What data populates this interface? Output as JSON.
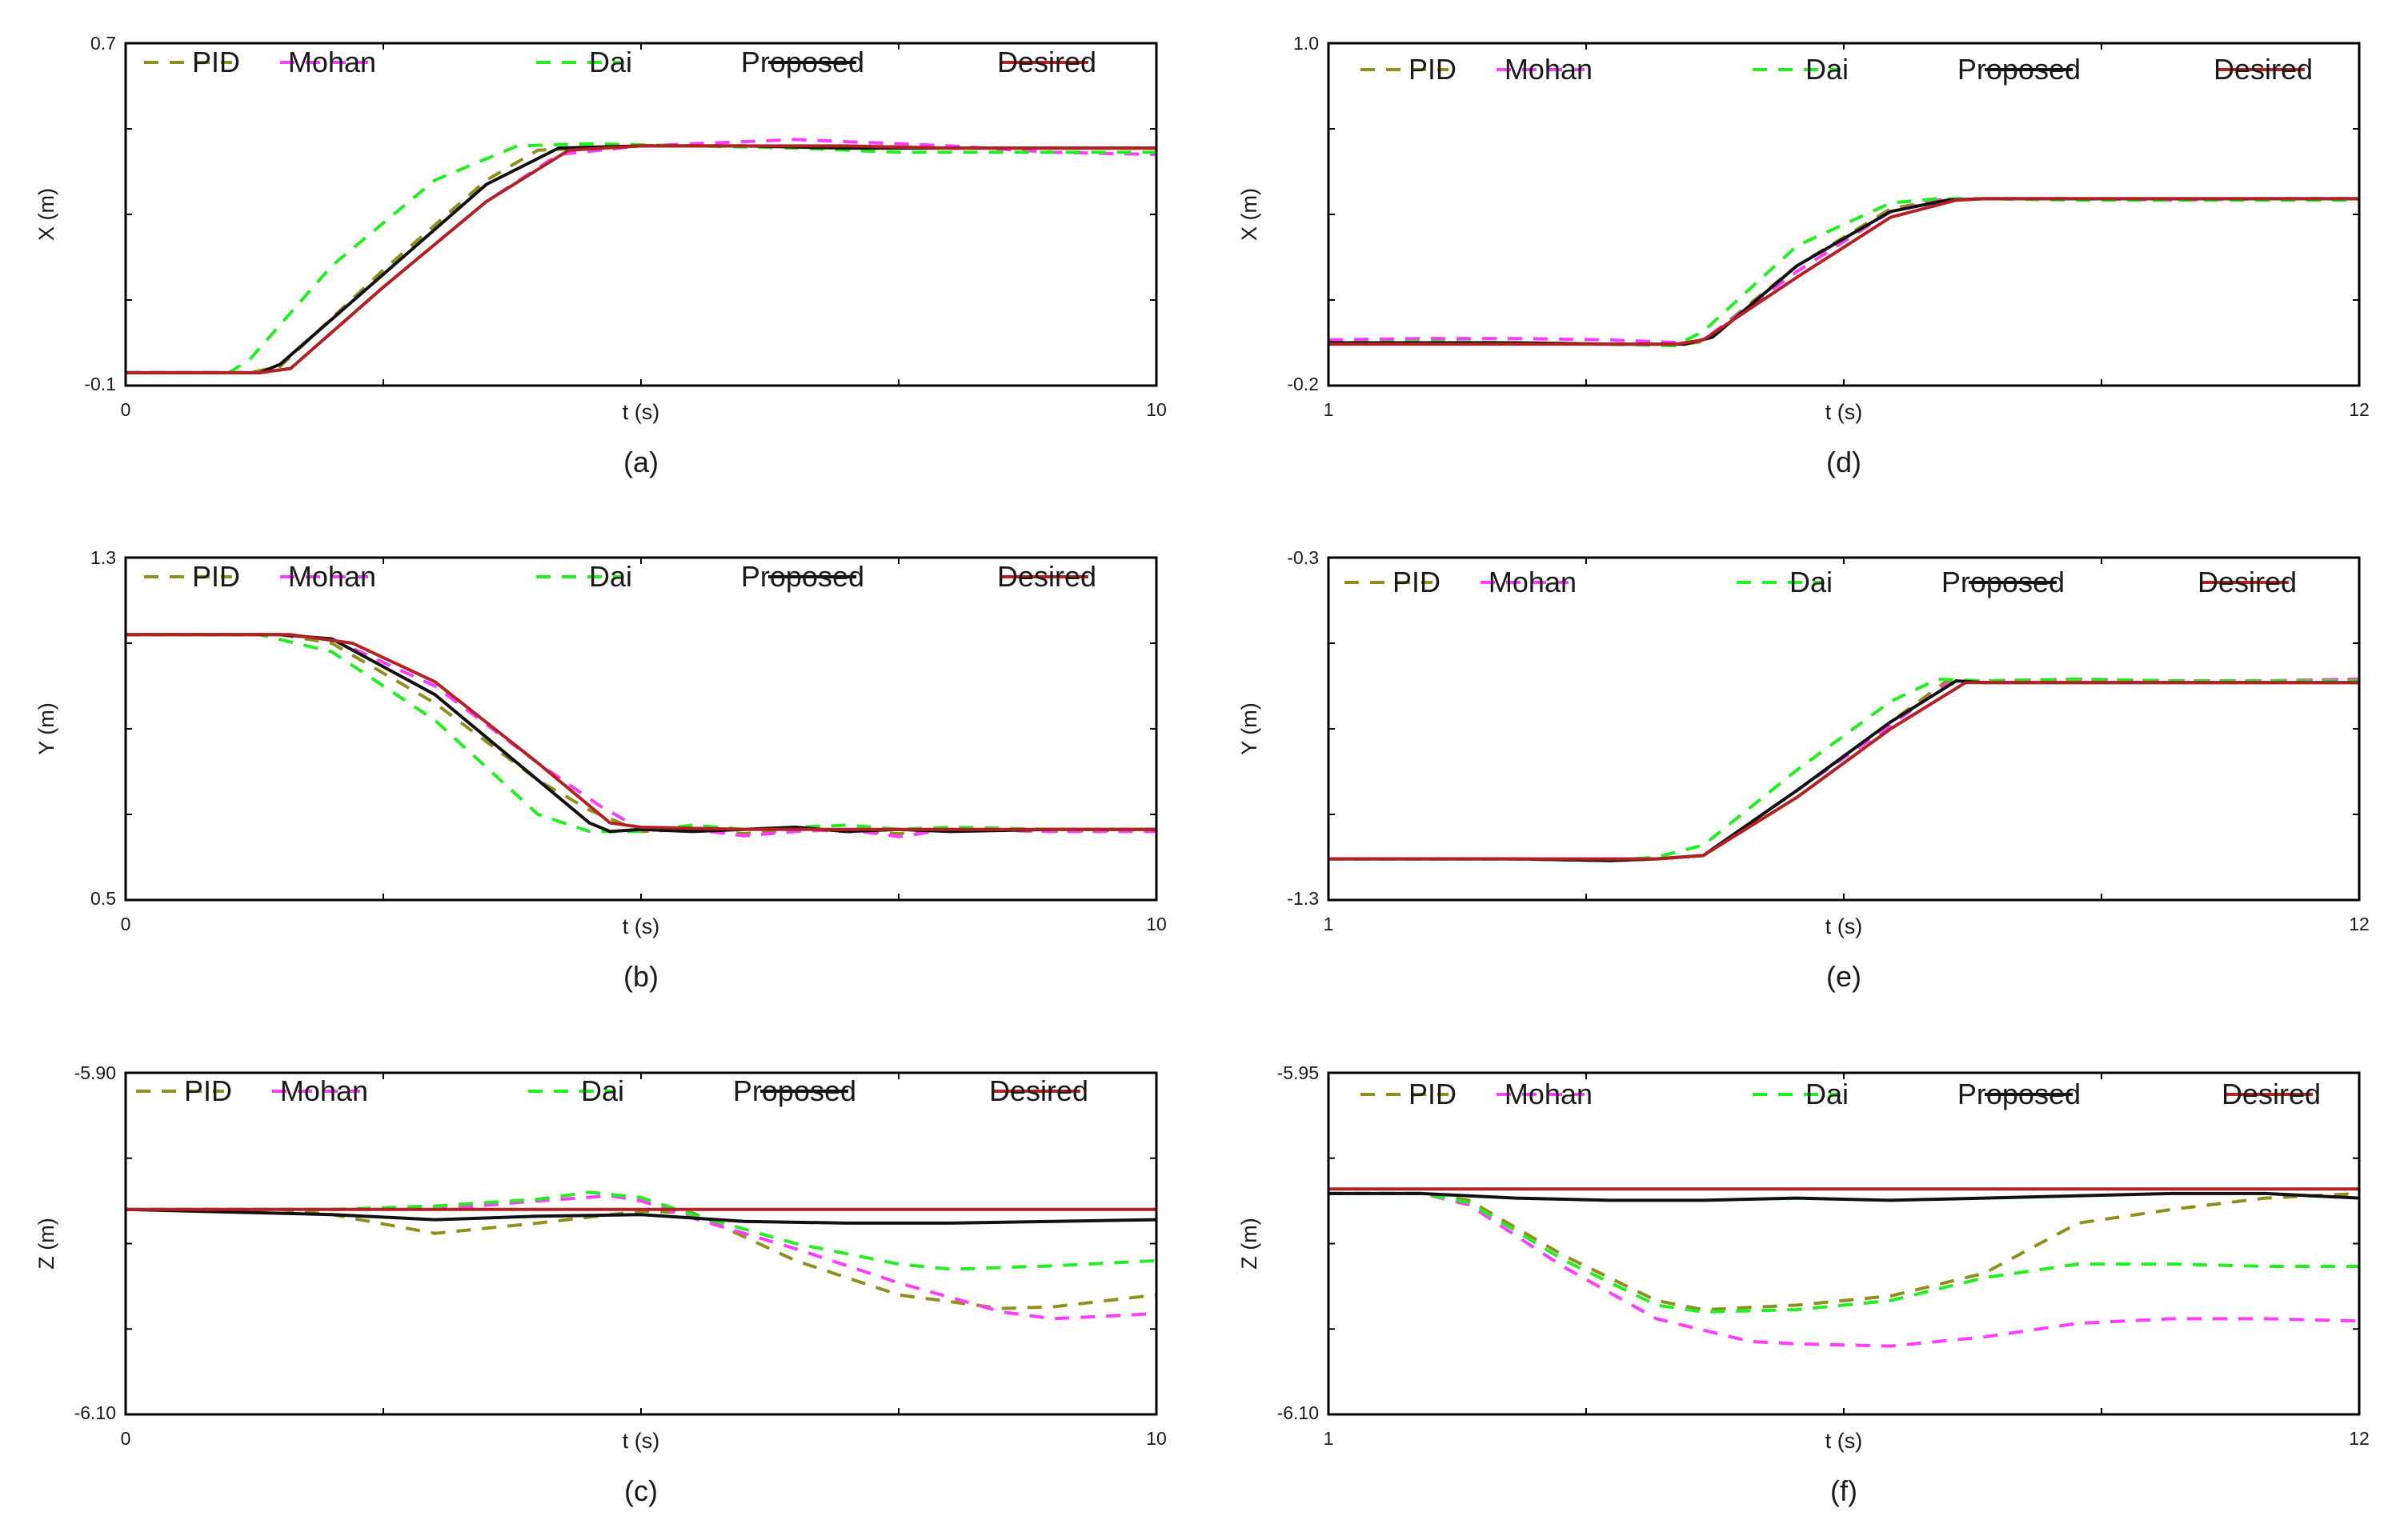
{
  "legend_labels": [
    "PID",
    "Mohan",
    "Dai",
    "Proposed",
    "Desired"
  ],
  "colors": {
    "PID": "#8f8f1e",
    "Mohan": "#ff3cff",
    "Dai": "#22ee22",
    "Proposed": "#111111",
    "Desired": "#b22222"
  },
  "chart_data": [
    {
      "type": "line",
      "caption": "(a)",
      "xlabel": "t (s)",
      "ylabel": "X (m)",
      "xlim": [
        0,
        10
      ],
      "ylim": [
        -0.1,
        0.7
      ],
      "x_tick_labels": [
        "0",
        "10"
      ],
      "y_tick_labels": [
        "0.7",
        "-0.1"
      ],
      "series": [
        {
          "name": "PID",
          "style": "dashed",
          "x": [
            0,
            1.2,
            1.5,
            2.5,
            3.5,
            4.0,
            5.0,
            6.0,
            7.0,
            8.0,
            9.0,
            10.0
          ],
          "y": [
            -0.07,
            -0.07,
            -0.055,
            0.17,
            0.38,
            0.45,
            0.46,
            0.46,
            0.455,
            0.455,
            0.455,
            0.455
          ]
        },
        {
          "name": "Mohan",
          "style": "dashed",
          "x": [
            0,
            1.3,
            1.6,
            2.5,
            3.5,
            4.2,
            5.0,
            6.0,
            6.5,
            7.0,
            8.0,
            9.0,
            10.0
          ],
          "y": [
            -0.07,
            -0.07,
            -0.06,
            0.13,
            0.33,
            0.44,
            0.46,
            0.47,
            0.475,
            0.47,
            0.46,
            0.445,
            0.44
          ]
        },
        {
          "name": "Dai",
          "style": "dashed",
          "x": [
            0,
            1.0,
            1.2,
            2.0,
            3.0,
            3.8,
            4.5,
            5.5,
            6.5,
            7.5,
            8.5,
            10.0
          ],
          "y": [
            -0.07,
            -0.07,
            -0.04,
            0.18,
            0.38,
            0.46,
            0.465,
            0.46,
            0.455,
            0.445,
            0.445,
            0.445
          ]
        },
        {
          "name": "Proposed",
          "style": "solid",
          "x": [
            0,
            1.3,
            1.5,
            2.5,
            3.5,
            4.2,
            5.0,
            6.0,
            7.0,
            8.0,
            9.0,
            10.0
          ],
          "y": [
            -0.07,
            -0.07,
            -0.05,
            0.16,
            0.37,
            0.455,
            0.46,
            0.46,
            0.455,
            0.455,
            0.455,
            0.455
          ]
        },
        {
          "name": "Desired",
          "style": "solid",
          "x": [
            0,
            1.3,
            1.6,
            2.5,
            3.5,
            4.3,
            5.0,
            6.0,
            7.0,
            8.0,
            9.0,
            10.0
          ],
          "y": [
            -0.07,
            -0.07,
            -0.06,
            0.13,
            0.33,
            0.45,
            0.46,
            0.46,
            0.46,
            0.455,
            0.455,
            0.455
          ]
        }
      ]
    },
    {
      "type": "line",
      "caption": "(b)",
      "xlabel": "t (s)",
      "ylabel": "Y (m)",
      "xlim": [
        0,
        10
      ],
      "ylim": [
        0.5,
        1.3
      ],
      "x_tick_labels": [
        "0",
        "10"
      ],
      "y_tick_labels": [
        "1.3",
        "0.5"
      ],
      "series": [
        {
          "name": "PID",
          "style": "dashed",
          "x": [
            0,
            1.5,
            2.0,
            3.0,
            4.0,
            4.5,
            5.0,
            5.5,
            6.0,
            6.5,
            7.0,
            7.5,
            8.0,
            9.0,
            10.0
          ],
          "y": [
            1.12,
            1.12,
            1.1,
            0.96,
            0.78,
            0.71,
            0.66,
            0.665,
            0.655,
            0.665,
            0.66,
            0.655,
            0.665,
            0.66,
            0.665
          ]
        },
        {
          "name": "Mohan",
          "style": "dashed",
          "x": [
            0,
            1.5,
            2.0,
            3.0,
            4.0,
            4.6,
            5.0,
            5.5,
            6.0,
            6.5,
            7.0,
            7.5,
            8.0,
            9.0,
            10.0
          ],
          "y": [
            1.12,
            1.12,
            1.11,
            1.0,
            0.82,
            0.72,
            0.665,
            0.665,
            0.65,
            0.66,
            0.665,
            0.648,
            0.665,
            0.66,
            0.66
          ]
        },
        {
          "name": "Dai",
          "style": "dashed",
          "x": [
            0,
            1.3,
            2.0,
            3.0,
            4.0,
            4.5,
            5.0,
            5.5,
            6.0,
            6.5,
            7.0,
            7.5,
            8.0,
            9.0,
            10.0
          ],
          "y": [
            1.12,
            1.12,
            1.08,
            0.92,
            0.7,
            0.66,
            0.66,
            0.675,
            0.665,
            0.67,
            0.675,
            0.665,
            0.67,
            0.665,
            0.665
          ]
        },
        {
          "name": "Proposed",
          "style": "solid",
          "x": [
            0,
            1.5,
            2.0,
            3.0,
            4.0,
            4.5,
            4.7,
            5.0,
            5.5,
            6.0,
            6.5,
            7.0,
            7.5,
            8.0,
            9.0,
            10.0
          ],
          "y": [
            1.12,
            1.12,
            1.11,
            0.98,
            0.78,
            0.68,
            0.66,
            0.665,
            0.66,
            0.665,
            0.67,
            0.66,
            0.665,
            0.66,
            0.665,
            0.665
          ]
        },
        {
          "name": "Desired",
          "style": "solid",
          "x": [
            0,
            1.6,
            2.2,
            3.0,
            4.0,
            4.7,
            5.0,
            6.0,
            7.0,
            8.0,
            9.0,
            10.0
          ],
          "y": [
            1.12,
            1.12,
            1.1,
            1.01,
            0.82,
            0.68,
            0.67,
            0.665,
            0.665,
            0.665,
            0.665,
            0.665
          ]
        }
      ]
    },
    {
      "type": "line",
      "caption": "(c)",
      "xlabel": "t (s)",
      "ylabel": "Z (m)",
      "xlim": [
        0,
        10
      ],
      "ylim": [
        -6.1,
        -5.9
      ],
      "x_tick_labels": [
        "0",
        "10"
      ],
      "y_tick_labels": [
        "-5.90",
        "-6.10"
      ],
      "series": [
        {
          "name": "PID",
          "style": "dashed",
          "x": [
            0,
            1.5,
            2.0,
            3.0,
            4.0,
            5.0,
            5.5,
            6.5,
            7.5,
            8.5,
            9.0,
            10.0
          ],
          "y": [
            -5.98,
            -5.98,
            -5.983,
            -5.994,
            -5.988,
            -5.981,
            -5.982,
            -6.01,
            -6.03,
            -6.038,
            -6.037,
            -6.03
          ]
        },
        {
          "name": "Mohan",
          "style": "dashed",
          "x": [
            0,
            2.0,
            3.0,
            4.0,
            4.7,
            5.0,
            5.5,
            6.5,
            7.5,
            8.5,
            9.0,
            10.0
          ],
          "y": [
            -5.98,
            -5.98,
            -5.98,
            -5.975,
            -5.972,
            -5.975,
            -5.985,
            -6.003,
            -6.023,
            -6.04,
            -6.044,
            -6.041
          ]
        },
        {
          "name": "Dai",
          "style": "dashed",
          "x": [
            0,
            2.0,
            3.0,
            4.0,
            4.5,
            5.0,
            5.5,
            6.5,
            7.5,
            8.0,
            9.0,
            10.0
          ],
          "y": [
            -5.98,
            -5.98,
            -5.978,
            -5.974,
            -5.97,
            -5.973,
            -5.983,
            -6.0,
            -6.012,
            -6.015,
            -6.013,
            -6.01
          ]
        },
        {
          "name": "Proposed",
          "style": "solid",
          "x": [
            0,
            2.0,
            3.0,
            4.0,
            5.0,
            6.0,
            7.0,
            8.0,
            9.0,
            10.0
          ],
          "y": [
            -5.98,
            -5.983,
            -5.986,
            -5.984,
            -5.983,
            -5.987,
            -5.988,
            -5.988,
            -5.987,
            -5.986
          ]
        },
        {
          "name": "Desired",
          "style": "solid",
          "x": [
            0,
            10
          ],
          "y": [
            -5.98,
            -5.98
          ]
        }
      ]
    },
    {
      "type": "line",
      "caption": "(d)",
      "xlabel": "t (s)",
      "ylabel": "X (m)",
      "xlim": [
        1,
        12
      ],
      "ylim": [
        -0.2,
        1.0
      ],
      "x_tick_labels": [
        "1",
        "12"
      ],
      "y_tick_labels": [
        "1.0",
        "-0.2"
      ],
      "series": [
        {
          "name": "PID",
          "style": "dashed",
          "x": [
            1,
            2,
            3,
            4,
            4.8,
            5.0,
            6.0,
            7.0,
            7.5,
            8.0,
            9.0,
            10.0,
            11.0,
            12.0
          ],
          "y": [
            -0.05,
            -0.045,
            -0.05,
            -0.055,
            -0.055,
            -0.045,
            0.22,
            0.42,
            0.45,
            0.455,
            0.455,
            0.45,
            0.455,
            0.455
          ]
        },
        {
          "name": "Mohan",
          "style": "dashed",
          "x": [
            1,
            2,
            3,
            4,
            4.8,
            5.0,
            6.0,
            7.0,
            7.5,
            8.0,
            9.0,
            10.0,
            11.0,
            12.0
          ],
          "y": [
            -0.04,
            -0.035,
            -0.035,
            -0.04,
            -0.05,
            -0.04,
            0.2,
            0.41,
            0.45,
            0.455,
            0.455,
            0.45,
            0.455,
            0.455
          ]
        },
        {
          "name": "Dai",
          "style": "dashed",
          "x": [
            1,
            2,
            3,
            4,
            4.7,
            5.0,
            6.0,
            7.0,
            7.5,
            8.0,
            9.0,
            10.0,
            11.0,
            12.0
          ],
          "y": [
            -0.05,
            -0.045,
            -0.05,
            -0.055,
            -0.06,
            -0.01,
            0.29,
            0.44,
            0.455,
            0.455,
            0.45,
            0.45,
            0.45,
            0.45
          ]
        },
        {
          "name": "Proposed",
          "style": "solid",
          "x": [
            1,
            2,
            3,
            4,
            4.8,
            5.1,
            6.0,
            7.0,
            7.6,
            8.0,
            9.0,
            10.0,
            11.0,
            12.0
          ],
          "y": [
            -0.05,
            -0.05,
            -0.05,
            -0.055,
            -0.055,
            -0.03,
            0.22,
            0.41,
            0.45,
            0.455,
            0.455,
            0.455,
            0.455,
            0.455
          ]
        },
        {
          "name": "Desired",
          "style": "solid",
          "x": [
            1,
            4.7,
            5.0,
            6.0,
            7.0,
            7.7,
            8.0,
            9.0,
            10.0,
            11.0,
            12.0
          ],
          "y": [
            -0.055,
            -0.055,
            -0.04,
            0.18,
            0.39,
            0.45,
            0.455,
            0.455,
            0.455,
            0.455,
            0.455
          ]
        }
      ]
    },
    {
      "type": "line",
      "caption": "(e)",
      "xlabel": "t (s)",
      "ylabel": "Y (m)",
      "xlim": [
        1,
        12
      ],
      "ylim": [
        -1.3,
        -0.3
      ],
      "x_tick_labels": [
        "1",
        "12"
      ],
      "y_tick_labels": [
        "-0.3",
        "-1.3"
      ],
      "series": [
        {
          "name": "PID",
          "style": "dashed",
          "x": [
            1,
            3,
            4.0,
            4.5,
            5.0,
            6.0,
            7.0,
            7.6,
            8.0,
            9.0,
            10.0,
            11.0,
            12.0
          ],
          "y": [
            -1.18,
            -1.18,
            -1.185,
            -1.18,
            -1.17,
            -0.98,
            -0.78,
            -0.66,
            -0.66,
            -0.655,
            -0.66,
            -0.66,
            -0.655
          ]
        },
        {
          "name": "Mohan",
          "style": "dashed",
          "x": [
            1,
            3,
            4.0,
            4.5,
            5.0,
            6.0,
            7.0,
            7.6,
            8.0,
            9.0,
            10.0,
            11.0,
            12.0
          ],
          "y": [
            -1.18,
            -1.18,
            -1.185,
            -1.18,
            -1.17,
            -0.98,
            -0.79,
            -0.67,
            -0.66,
            -0.655,
            -0.66,
            -0.66,
            -0.655
          ]
        },
        {
          "name": "Dai",
          "style": "dashed",
          "x": [
            1,
            3,
            4.0,
            4.5,
            5.0,
            6.0,
            7.0,
            7.5,
            8.0,
            9.0,
            10.0,
            11.0,
            12.0
          ],
          "y": [
            -1.18,
            -1.18,
            -1.185,
            -1.175,
            -1.14,
            -0.92,
            -0.72,
            -0.655,
            -0.66,
            -0.655,
            -0.66,
            -0.66,
            -0.66
          ]
        },
        {
          "name": "Proposed",
          "style": "solid",
          "x": [
            1,
            3,
            4.0,
            4.5,
            5.0,
            6.0,
            7.0,
            7.7,
            8.0,
            9.0,
            10.0,
            11.0,
            12.0
          ],
          "y": [
            -1.18,
            -1.18,
            -1.185,
            -1.18,
            -1.17,
            -0.98,
            -0.78,
            -0.66,
            -0.665,
            -0.665,
            -0.665,
            -0.665,
            -0.665
          ]
        },
        {
          "name": "Desired",
          "style": "solid",
          "x": [
            1,
            4.5,
            5.0,
            6.0,
            7.0,
            7.8,
            8.0,
            9.0,
            10.0,
            11.0,
            12.0
          ],
          "y": [
            -1.18,
            -1.18,
            -1.17,
            -1.0,
            -0.8,
            -0.665,
            -0.665,
            -0.665,
            -0.665,
            -0.665,
            -0.665
          ]
        }
      ]
    },
    {
      "type": "line",
      "caption": "(f)",
      "xlabel": "t (s)",
      "ylabel": "Z (m)",
      "xlim": [
        1,
        12
      ],
      "ylim": [
        -6.1,
        -5.95
      ],
      "x_tick_labels": [
        "1",
        "12"
      ],
      "y_tick_labels": [
        "-5.95",
        "-6.10"
      ],
      "series": [
        {
          "name": "PID",
          "style": "dashed",
          "x": [
            1,
            2,
            2.5,
            3.5,
            4.5,
            5.0,
            6.0,
            7.0,
            8.0,
            9.0,
            10.0,
            11.0,
            12.0
          ],
          "y": [
            -6.003,
            -6.003,
            -6.006,
            -6.03,
            -6.05,
            -6.054,
            -6.052,
            -6.048,
            -6.038,
            -6.016,
            -6.01,
            -6.005,
            -6.003
          ]
        },
        {
          "name": "Mohan",
          "style": "dashed",
          "x": [
            1,
            2,
            2.5,
            3.5,
            4.5,
            5.5,
            6.0,
            7.0,
            8.0,
            9.0,
            10.0,
            11.0,
            12.0
          ],
          "y": [
            -6.003,
            -6.003,
            -6.008,
            -6.035,
            -6.058,
            -6.068,
            -6.069,
            -6.07,
            -6.066,
            -6.06,
            -6.058,
            -6.058,
            -6.059
          ]
        },
        {
          "name": "Dai",
          "style": "dashed",
          "x": [
            1,
            2,
            2.5,
            3.5,
            4.5,
            5.0,
            6.0,
            7.0,
            8.0,
            9.0,
            10.0,
            11.0,
            12.0
          ],
          "y": [
            -6.003,
            -6.003,
            -6.007,
            -6.032,
            -6.052,
            -6.055,
            -6.054,
            -6.05,
            -6.04,
            -6.034,
            -6.034,
            -6.035,
            -6.035
          ]
        },
        {
          "name": "Proposed",
          "style": "solid",
          "x": [
            1,
            2,
            3,
            4,
            5,
            6,
            7,
            8,
            9,
            10,
            11,
            12
          ],
          "y": [
            -6.003,
            -6.003,
            -6.005,
            -6.006,
            -6.006,
            -6.005,
            -6.006,
            -6.005,
            -6.004,
            -6.003,
            -6.003,
            -6.005
          ]
        },
        {
          "name": "Desired",
          "style": "solid",
          "x": [
            1,
            12
          ],
          "y": [
            -6.001,
            -6.001
          ]
        }
      ]
    }
  ]
}
